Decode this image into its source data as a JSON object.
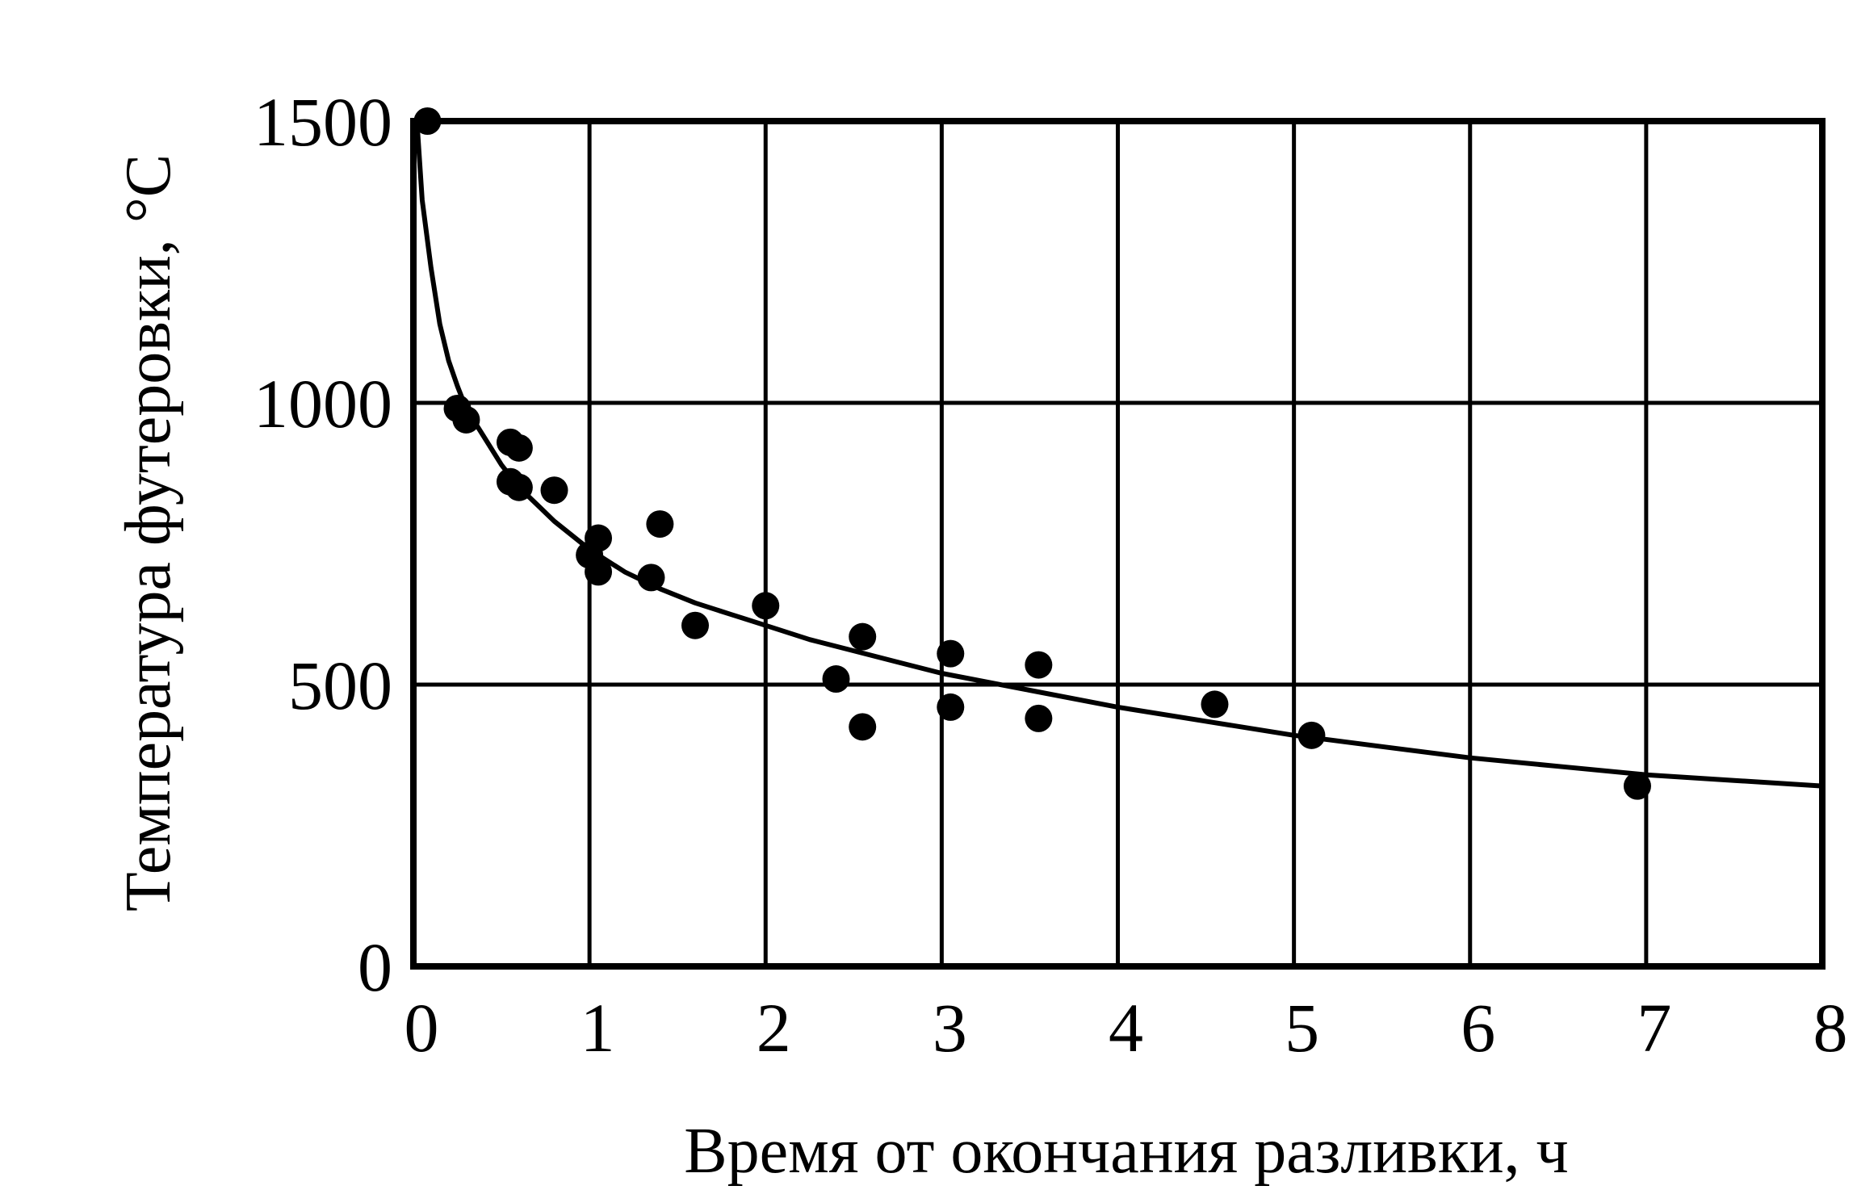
{
  "chart_data": {
    "type": "scatter",
    "xlabel": "Время от окончания разливки, ч",
    "ylabel": "Температура футеровки, °С",
    "xlim": [
      0,
      8
    ],
    "ylim": [
      0,
      1500
    ],
    "x_ticks": [
      "0",
      "1",
      "2",
      "3",
      "4",
      "5",
      "6",
      "7",
      "8"
    ],
    "y_ticks": [
      "0",
      "500",
      "1000",
      "1500"
    ],
    "grid": true,
    "series": [
      {
        "kind": "points",
        "x": [
          0.08,
          0.25,
          0.3,
          0.55,
          0.6,
          0.55,
          0.6,
          0.8,
          1.0,
          1.05,
          1.05,
          1.4,
          1.35,
          1.6,
          2.0,
          2.4,
          2.55,
          2.55,
          3.05,
          3.05,
          3.55,
          3.55,
          4.55,
          5.1,
          6.95
        ],
        "y": [
          1500,
          990,
          970,
          930,
          920,
          860,
          850,
          845,
          730,
          760,
          700,
          785,
          690,
          605,
          640,
          510,
          585,
          425,
          555,
          460,
          535,
          440,
          465,
          410,
          320
        ]
      },
      {
        "kind": "fit",
        "x": [
          0.02,
          0.05,
          0.1,
          0.15,
          0.2,
          0.25,
          0.3,
          0.4,
          0.5,
          0.6,
          0.7,
          0.8,
          1.0,
          1.2,
          1.4,
          1.6,
          1.8,
          2.0,
          2.25,
          2.5,
          2.75,
          3.0,
          3.5,
          4.0,
          4.5,
          5.0,
          5.5,
          6.0,
          6.5,
          7.0,
          7.5,
          8.0
        ],
        "y": [
          1500,
          1360,
          1240,
          1140,
          1075,
          1030,
          990,
          940,
          890,
          850,
          820,
          790,
          740,
          700,
          670,
          645,
          625,
          605,
          580,
          560,
          540,
          520,
          490,
          460,
          435,
          410,
          390,
          370,
          355,
          340,
          330,
          320
        ]
      }
    ]
  }
}
